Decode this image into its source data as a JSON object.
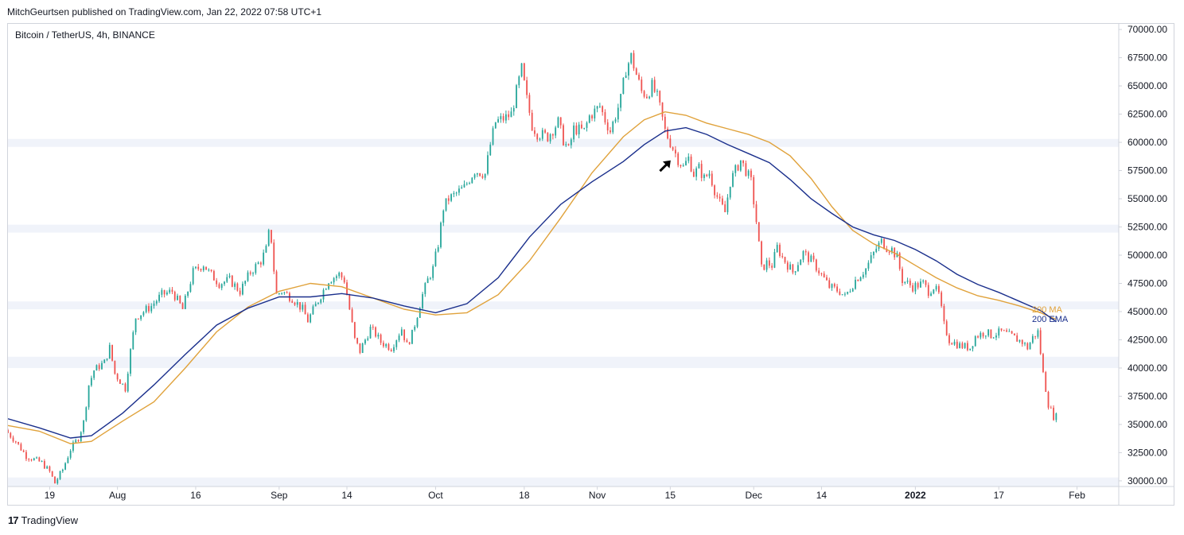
{
  "header": {
    "publisher": "MitchGeurtsen published on TradingView.com, Jan 22, 2022 07:58 UTC+1"
  },
  "symbol": {
    "label": "Bitcoin / TetherUS, 4h, BINANCE"
  },
  "branding": {
    "name": "TradingView",
    "logo": "17"
  },
  "colors": {
    "up": "#26a69a",
    "down": "#ef5350",
    "ma": "#e0a23b",
    "ema": "#1a2f8c",
    "zone": "#f0f3fa",
    "grid": "#f0f3fa",
    "axis": "#d1d4dc"
  },
  "chart_data": {
    "type": "candlestick",
    "title": "Bitcoin / TetherUS, 4h, BINANCE",
    "x_axis": {
      "labels": [
        {
          "text": "19",
          "day": 0
        },
        {
          "text": "Aug",
          "day": 13
        },
        {
          "text": "16",
          "day": 28
        },
        {
          "text": "Sep",
          "day": 44
        },
        {
          "text": "14",
          "day": 57
        },
        {
          "text": "Oct",
          "day": 74
        },
        {
          "text": "18",
          "day": 91
        },
        {
          "text": "Nov",
          "day": 105
        },
        {
          "text": "15",
          "day": 119
        },
        {
          "text": "Dec",
          "day": 135
        },
        {
          "text": "14",
          "day": 148
        },
        {
          "text": "2022",
          "day": 166,
          "bold": true
        },
        {
          "text": "17",
          "day": 182
        },
        {
          "text": "Feb",
          "day": 197
        }
      ],
      "range_days": [
        -8,
        205
      ]
    },
    "y_axis": {
      "ticks": [
        "70000.00",
        "67500.00",
        "65000.00",
        "62500.00",
        "60000.00",
        "57500.00",
        "55000.00",
        "52500.00",
        "50000.00",
        "47500.00",
        "45000.00",
        "42500.00",
        "40000.00",
        "37500.00",
        "35000.00",
        "32500.00",
        "30000.00"
      ],
      "range": [
        29500,
        70500
      ]
    },
    "zones": [
      {
        "low": 59600,
        "high": 60300
      },
      {
        "low": 52000,
        "high": 52700
      },
      {
        "low": 45200,
        "high": 45900
      },
      {
        "low": 40000,
        "high": 41000
      },
      {
        "low": 29500,
        "high": 30300
      }
    ],
    "price_path": [
      [
        -8,
        34500
      ],
      [
        -6,
        33500
      ],
      [
        -4,
        32200
      ],
      [
        -1,
        31600
      ],
      [
        0.5,
        30800
      ],
      [
        1.5,
        29800
      ],
      [
        3,
        31000
      ],
      [
        4.5,
        32800
      ],
      [
        6,
        33800
      ],
      [
        7,
        35200
      ],
      [
        8,
        38500
      ],
      [
        9,
        39800
      ],
      [
        11,
        40500
      ],
      [
        12,
        41800
      ],
      [
        13,
        39500
      ],
      [
        15,
        38200
      ],
      [
        16,
        41500
      ],
      [
        17,
        44500
      ],
      [
        20,
        45500
      ],
      [
        22,
        46500
      ],
      [
        24,
        46800
      ],
      [
        26,
        45200
      ],
      [
        28,
        48500
      ],
      [
        30,
        49200
      ],
      [
        31,
        48500
      ],
      [
        33,
        47500
      ],
      [
        35,
        47800
      ],
      [
        37,
        46800
      ],
      [
        39,
        48500
      ],
      [
        41,
        49500
      ],
      [
        42,
        50500
      ],
      [
        42.8,
        52700
      ],
      [
        43.2,
        50000
      ],
      [
        44,
        46500
      ],
      [
        45,
        46800
      ],
      [
        47,
        46200
      ],
      [
        49,
        45200
      ],
      [
        50,
        44200
      ],
      [
        52,
        46000
      ],
      [
        54,
        47800
      ],
      [
        56,
        48300
      ],
      [
        57,
        47800
      ],
      [
        58,
        45200
      ],
      [
        59,
        42500
      ],
      [
        60,
        41500
      ],
      [
        62,
        43500
      ],
      [
        63,
        43000
      ],
      [
        64,
        42300
      ],
      [
        66,
        41800
      ],
      [
        68,
        43500
      ],
      [
        69,
        42000
      ],
      [
        70,
        43000
      ],
      [
        72,
        46500
      ],
      [
        73,
        47800
      ],
      [
        74,
        48800
      ],
      [
        75,
        51000
      ],
      [
        76,
        54200
      ],
      [
        77,
        55000
      ],
      [
        78,
        55300
      ],
      [
        80,
        56000
      ],
      [
        82,
        57500
      ],
      [
        84,
        57200
      ],
      [
        85,
        59800
      ],
      [
        86,
        61800
      ],
      [
        88,
        62200
      ],
      [
        89,
        62500
      ],
      [
        90,
        64500
      ],
      [
        91,
        66500
      ],
      [
        92,
        63800
      ],
      [
        93,
        61500
      ],
      [
        94,
        60800
      ],
      [
        96,
        60500
      ],
      [
        98,
        61800
      ],
      [
        99,
        60200
      ],
      [
        100,
        59300
      ],
      [
        101,
        61200
      ],
      [
        103,
        61000
      ],
      [
        104,
        62300
      ],
      [
        106,
        63200
      ],
      [
        107,
        62000
      ],
      [
        108,
        61000
      ],
      [
        110,
        63800
      ],
      [
        111,
        66500
      ],
      [
        112,
        67600
      ],
      [
        113,
        66000
      ],
      [
        114,
        64500
      ],
      [
        115,
        64200
      ],
      [
        116,
        65000
      ],
      [
        117,
        64000
      ],
      [
        117.8,
        62500
      ],
      [
        118.5,
        61000
      ],
      [
        119.5,
        60000
      ],
      [
        121,
        58500
      ],
      [
        122,
        57800
      ],
      [
        123,
        58600
      ],
      [
        124,
        57200
      ],
      [
        125,
        57700
      ],
      [
        126,
        56800
      ],
      [
        127,
        57300
      ],
      [
        128,
        55800
      ],
      [
        129,
        54600
      ],
      [
        130,
        53800
      ],
      [
        131,
        56500
      ],
      [
        132,
        57500
      ],
      [
        133,
        58400
      ],
      [
        134,
        57500
      ],
      [
        135,
        56500
      ],
      [
        136,
        53000
      ],
      [
        137,
        48800
      ],
      [
        138,
        49300
      ],
      [
        139,
        49100
      ],
      [
        140,
        50700
      ],
      [
        141,
        49800
      ],
      [
        143,
        48500
      ],
      [
        145,
        50200
      ],
      [
        147,
        49300
      ],
      [
        148,
        48600
      ],
      [
        150,
        47200
      ],
      [
        152,
        46800
      ],
      [
        153,
        46300
      ],
      [
        155,
        47800
      ],
      [
        157,
        48800
      ],
      [
        159,
        50600
      ],
      [
        160,
        51200
      ],
      [
        161,
        50700
      ],
      [
        162,
        50500
      ],
      [
        163,
        49800
      ],
      [
        164,
        47800
      ],
      [
        166,
        47200
      ],
      [
        168,
        47500
      ],
      [
        169,
        46800
      ],
      [
        170,
        47200
      ],
      [
        171,
        46500
      ],
      [
        172,
        43800
      ],
      [
        173,
        42500
      ],
      [
        175,
        42000
      ],
      [
        177,
        41800
      ],
      [
        178,
        42800
      ],
      [
        180,
        43200
      ],
      [
        181,
        42900
      ],
      [
        183,
        43200
      ],
      [
        185,
        42800
      ],
      [
        187,
        42300
      ],
      [
        188,
        41800
      ],
      [
        189,
        42700
      ],
      [
        190,
        43200
      ],
      [
        191,
        39500
      ],
      [
        192,
        36800
      ],
      [
        193,
        35700
      ]
    ],
    "series": [
      {
        "name": "200 MA",
        "color": "#e0a23b",
        "points": [
          [
            -8,
            34900
          ],
          [
            -2,
            34400
          ],
          [
            4,
            33300
          ],
          [
            8,
            33500
          ],
          [
            14,
            35300
          ],
          [
            20,
            37000
          ],
          [
            26,
            40000
          ],
          [
            32,
            43200
          ],
          [
            38,
            45400
          ],
          [
            44,
            46800
          ],
          [
            50,
            47500
          ],
          [
            56,
            47200
          ],
          [
            62,
            46200
          ],
          [
            68,
            45200
          ],
          [
            74,
            44700
          ],
          [
            80,
            44900
          ],
          [
            86,
            46500
          ],
          [
            92,
            49500
          ],
          [
            98,
            53300
          ],
          [
            104,
            57300
          ],
          [
            110,
            60500
          ],
          [
            114,
            62000
          ],
          [
            118,
            62700
          ],
          [
            122,
            62400
          ],
          [
            126,
            61700
          ],
          [
            130,
            61200
          ],
          [
            134,
            60700
          ],
          [
            138,
            60000
          ],
          [
            142,
            58800
          ],
          [
            146,
            56800
          ],
          [
            150,
            54300
          ],
          [
            154,
            52200
          ],
          [
            158,
            51000
          ],
          [
            162,
            50200
          ],
          [
            166,
            49100
          ],
          [
            170,
            48000
          ],
          [
            174,
            47100
          ],
          [
            178,
            46400
          ],
          [
            182,
            46000
          ],
          [
            186,
            45500
          ],
          [
            190,
            44900
          ],
          [
            193,
            44300
          ]
        ]
      },
      {
        "name": "200 EMA",
        "color": "#1a2f8c",
        "points": [
          [
            -8,
            35500
          ],
          [
            -2,
            34700
          ],
          [
            4,
            33800
          ],
          [
            8,
            34000
          ],
          [
            14,
            36000
          ],
          [
            20,
            38500
          ],
          [
            26,
            41200
          ],
          [
            32,
            43800
          ],
          [
            38,
            45300
          ],
          [
            44,
            46300
          ],
          [
            50,
            46300
          ],
          [
            56,
            46600
          ],
          [
            62,
            46200
          ],
          [
            68,
            45500
          ],
          [
            74,
            44900
          ],
          [
            80,
            45700
          ],
          [
            86,
            48000
          ],
          [
            92,
            51600
          ],
          [
            98,
            54500
          ],
          [
            104,
            56500
          ],
          [
            110,
            58300
          ],
          [
            114,
            59800
          ],
          [
            118,
            61000
          ],
          [
            122,
            61300
          ],
          [
            126,
            60700
          ],
          [
            130,
            59800
          ],
          [
            134,
            59000
          ],
          [
            138,
            58200
          ],
          [
            142,
            56700
          ],
          [
            146,
            55000
          ],
          [
            150,
            53700
          ],
          [
            154,
            52500
          ],
          [
            158,
            51800
          ],
          [
            162,
            51300
          ],
          [
            166,
            50500
          ],
          [
            170,
            49500
          ],
          [
            174,
            48300
          ],
          [
            178,
            47400
          ],
          [
            182,
            46700
          ],
          [
            186,
            45900
          ],
          [
            190,
            45100
          ],
          [
            193,
            44100
          ]
        ]
      }
    ],
    "legend": [
      {
        "name": "200 MA",
        "color": "#e0a23b"
      },
      {
        "name": "200 EMA",
        "color": "#1a2f8c"
      }
    ],
    "annotation": {
      "type": "arrow",
      "direction": "up-right",
      "day": 118,
      "price": 57900
    }
  }
}
